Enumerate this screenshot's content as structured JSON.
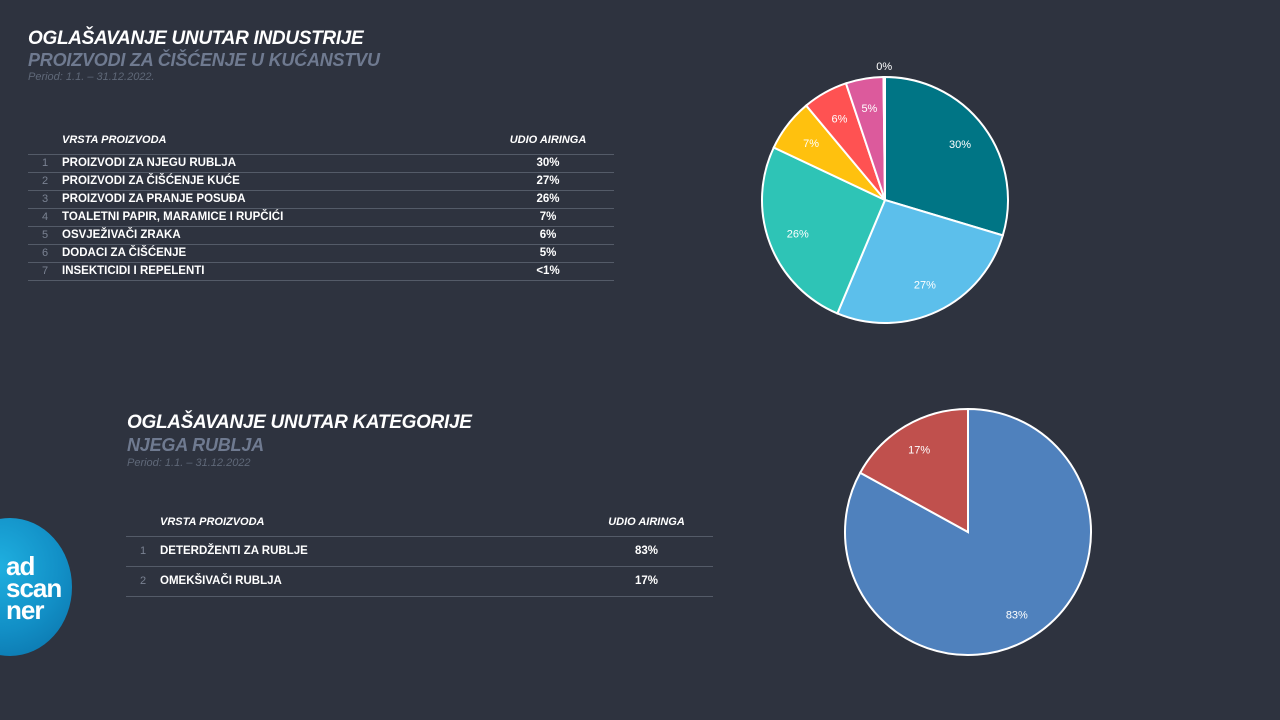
{
  "section1": {
    "title": "OGLAŠAVANJE UNUTAR INDUSTRIJE",
    "subtitle": "PROIZVODI ZA ČIŠĆENJE U KUĆANSTVU",
    "period": "Period: 1.1. – 31.12.2022.",
    "col_category": "VRSTA PROIZVODA",
    "col_share": "UDIO AIRINGA",
    "rows": [
      {
        "idx": "1",
        "name": "PROIZVODI ZA NJEGU RUBLJA",
        "share": "30%"
      },
      {
        "idx": "2",
        "name": "PROIZVODI ZA ČIŠĆENJE KUĆE",
        "share": "27%"
      },
      {
        "idx": "3",
        "name": "PROIZVODI ZA PRANJE POSUĐA",
        "share": "26%"
      },
      {
        "idx": "4",
        "name": "TOALETNI PAPIR, MARAMICE I RUPČIĆI",
        "share": "7%"
      },
      {
        "idx": "5",
        "name": "OSVJEŽIVAČI ZRAKA",
        "share": "6%"
      },
      {
        "idx": "6",
        "name": "DODACI ZA ČIŠĆENJE",
        "share": "5%"
      },
      {
        "idx": "7",
        "name": "INSEKTICIDI I REPELENTI",
        "share": "<1%"
      }
    ]
  },
  "section2": {
    "title": "OGLAŠAVANJE UNUTAR KATEGORIJE",
    "subtitle": "NJEGA RUBLJA",
    "period": "Period: 1.1. – 31.12.2022",
    "col_category": "VRSTA PROIZVODA",
    "col_share": "UDIO AIRINGA",
    "rows": [
      {
        "idx": "1",
        "name": "DETERDŽENTI ZA RUBLJE",
        "share": "83%"
      },
      {
        "idx": "2",
        "name": "OMEKŠIVAČI RUBLJA",
        "share": "17%"
      }
    ]
  },
  "chart_data": [
    {
      "type": "pie",
      "slices": [
        {
          "value": 30,
          "label": "30%",
          "color": "#007585"
        },
        {
          "value": 27,
          "label": "27%",
          "color": "#5cbfeb"
        },
        {
          "value": 26,
          "label": "26%",
          "color": "#2ec4b6"
        },
        {
          "value": 7,
          "label": "7%",
          "color": "#ffc10e"
        },
        {
          "value": 6,
          "label": "6%",
          "color": "#ff5252"
        },
        {
          "value": 5,
          "label": "5%",
          "color": "#dc5a9c"
        },
        {
          "value": 0.2,
          "label": "0%",
          "color": "#8e7cc3"
        }
      ]
    },
    {
      "type": "pie",
      "slices": [
        {
          "value": 83,
          "label": "83%",
          "color": "#4f81bd"
        },
        {
          "value": 17,
          "label": "17%",
          "color": "#c0504d"
        }
      ]
    }
  ],
  "logo": {
    "line1": "ad",
    "line2": "scan",
    "line3": "ner",
    "color": "#1aa3d8"
  }
}
